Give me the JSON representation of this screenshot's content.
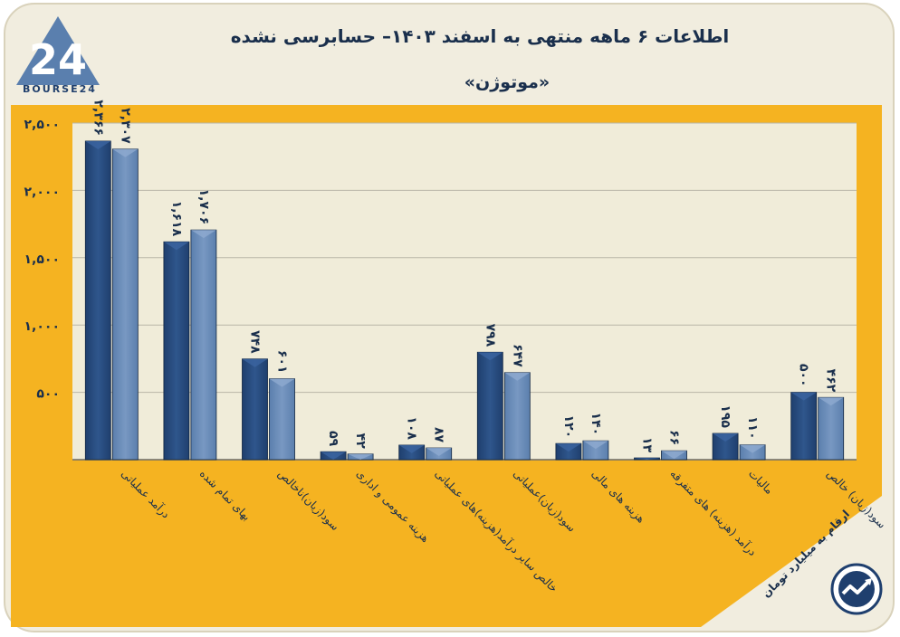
{
  "header": {
    "title": "اطلاعات ۶ ماهه منتهی به اسفند ۱۴۰۳– حسابرسی نشده",
    "subtitle": "«موتوژن»"
  },
  "brand": {
    "logo_text": "BOURSE24",
    "logo_mark": "24"
  },
  "footnote": "ارقام به میلیارد تومان",
  "colors": {
    "series1": "#1f3f6e",
    "series2": "#5b7fad",
    "background_band": "#f5b321",
    "plot_bg": "#f0ecd9"
  },
  "chart_data": {
    "type": "bar",
    "title": "اطلاعات ۶ ماهه منتهی به اسفند ۱۴۰۳– حسابرسی نشده",
    "subtitle": "«موتوژن»",
    "categories": [
      "درآمد عملیاتی",
      "بهای تمام شده",
      "سود(زیان)ناخالص",
      "هزینه عمومی و اداری",
      "خالص سایر درآمد(هزینه)های عملیاتی",
      "سود(زیان)عملیاتی",
      "هزینه های مالی",
      "درآمد (هزینه) های متفرقه",
      "مالیات",
      "سود(زیان) خالص"
    ],
    "series": [
      {
        "name": "series-1",
        "values": [
          2366,
          1618,
          748,
          59,
          108,
          798,
          120,
          13,
          195,
          500
        ],
        "labels": [
          "۲,۳۶۶",
          "۱,۶۱۸",
          "۷۴۸",
          "۵۹",
          "۱۰۸",
          "۷۹۸",
          "۱۲۰",
          "۱۳",
          "۱۹۵",
          "۵۰۰"
        ]
      },
      {
        "name": "series-2",
        "values": [
          2307,
          1706,
          601,
          42,
          87,
          647,
          140,
          66,
          110,
          462
        ],
        "labels": [
          "۲,۳۰۷",
          "۱,۷۰۶",
          "۶۰۱",
          "۴۲",
          "۸۷",
          "۶۴۷",
          "۱۴۰",
          "۶۶",
          "۱۱۰",
          "۴۶۲"
        ]
      }
    ],
    "yticks": [
      500,
      1000,
      1500,
      2000,
      2500
    ],
    "ytick_labels": [
      "۵۰۰",
      "۱,۰۰۰",
      "۱,۵۰۰",
      "۲,۰۰۰",
      "۲,۵۰۰"
    ],
    "ylim": [
      0,
      2500
    ],
    "grid": true,
    "xlabel": "",
    "ylabel": "ارقام به میلیارد تومان"
  }
}
